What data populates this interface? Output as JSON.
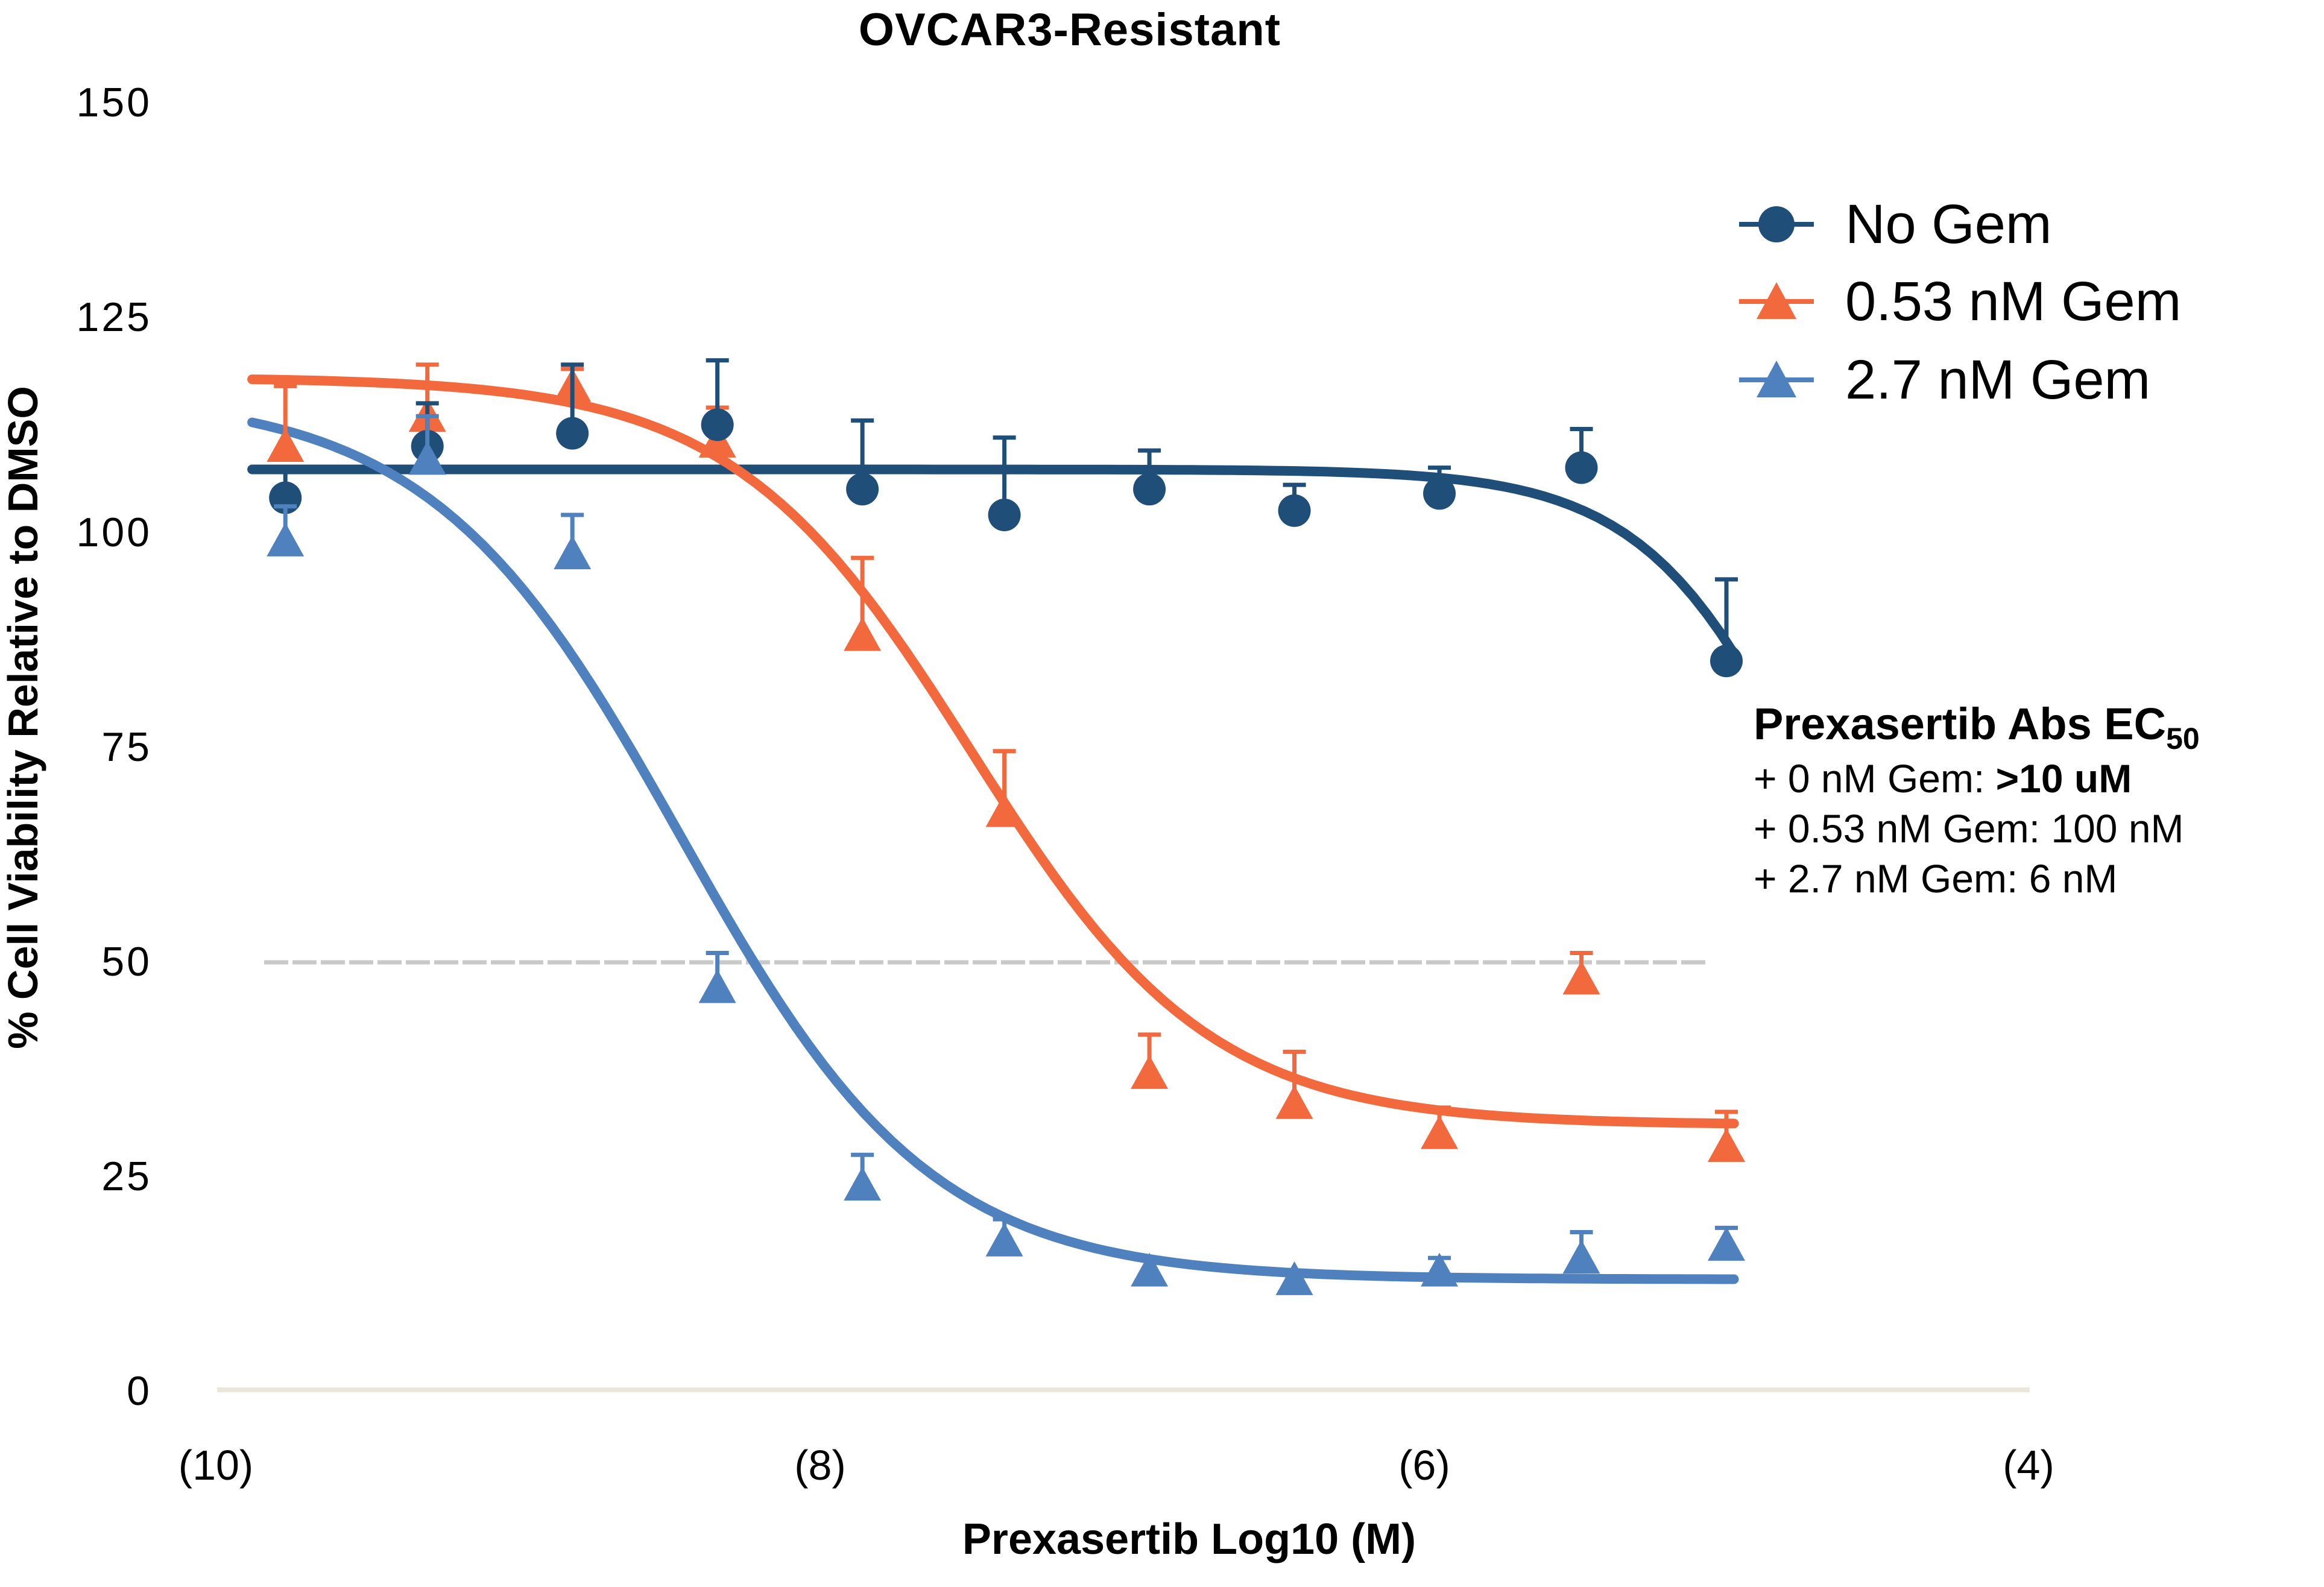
{
  "figure": {
    "title": "OVCAR3-Resistant"
  },
  "chart_data": {
    "type": "scatter",
    "title": "OVCAR3-Resistant",
    "xlabel": "Prexasertib Log10 (M)",
    "ylabel": "% Cell Viability Relative to DMSO",
    "x_ticks": [
      {
        "label": "(10)",
        "log": -10
      },
      {
        "label": "(8)",
        "log": -8
      },
      {
        "label": "(6)",
        "log": -6
      },
      {
        "label": "(4)",
        "log": -4
      }
    ],
    "y_ticks": [
      150,
      125,
      100,
      75,
      50,
      25,
      0
    ],
    "xlim": [
      -10.3,
      -4
    ],
    "ylim": [
      0,
      150
    ],
    "gridlines": {
      "zero_line": {
        "y": 0,
        "color": "#EAE7D9",
        "style": "solid",
        "x_from": -10.0,
        "x_to": -4.0
      },
      "fifty_line": {
        "y": 50,
        "color": "#C9C9C9",
        "style": "dashed",
        "x_from": -9.84,
        "x_to": -5.06
      }
    },
    "legend_position": "right",
    "series": [
      {
        "name": "No Gem",
        "color": "#1F4E79",
        "marker": "circle",
        "points": [
          {
            "x": -9.77,
            "y": 104.0,
            "err": 3.0
          },
          {
            "x": -9.3,
            "y": 110.0,
            "err": 5.0
          },
          {
            "x": -8.82,
            "y": 111.5,
            "err": 8.0
          },
          {
            "x": -8.34,
            "y": 112.5,
            "err": 7.5
          },
          {
            "x": -7.86,
            "y": 105.0,
            "err": 8.0
          },
          {
            "x": -7.39,
            "y": 102.0,
            "err": 9.0
          },
          {
            "x": -6.91,
            "y": 105.0,
            "err": 4.5
          },
          {
            "x": -6.43,
            "y": 102.5,
            "err": 3.0
          },
          {
            "x": -5.95,
            "y": 104.5,
            "err": 3.0
          },
          {
            "x": -5.48,
            "y": 107.5,
            "err": 4.5
          },
          {
            "x": -5.0,
            "y": 85.0,
            "err": 9.5
          }
        ],
        "fit": {
          "top": 107.3,
          "bottom": 20,
          "logec50": -4.65,
          "hill": 1.5
        },
        "ec50_label": ">10 uM"
      },
      {
        "name": "0.53 nM Gem",
        "color": "#F1693C",
        "marker": "triangle",
        "points": [
          {
            "x": -9.77,
            "y": 110.0,
            "err": 7.0
          },
          {
            "x": -9.3,
            "y": 113.5,
            "err": 6.0
          },
          {
            "x": -8.82,
            "y": 117.0,
            "err": 2.0
          },
          {
            "x": -8.34,
            "y": 110.5,
            "err": 4.0
          },
          {
            "x": -7.86,
            "y": 88.0,
            "err": 9.0
          },
          {
            "x": -7.39,
            "y": 67.5,
            "err": 7.0
          },
          {
            "x": -6.91,
            "y": 37.0,
            "err": 4.5
          },
          {
            "x": -6.43,
            "y": 33.5,
            "err": 6.0
          },
          {
            "x": -5.95,
            "y": 30.0,
            "err": 3.0
          },
          {
            "x": -5.48,
            "y": 48.0,
            "err": 3.0
          },
          {
            "x": -5.0,
            "y": 28.5,
            "err": 4.0
          }
        ],
        "fit": {
          "top": 118,
          "bottom": 31,
          "logec50": -7.5,
          "hill": 1.1
        },
        "ec50_label": "100 nM"
      },
      {
        "name": "2.7 nM Gem",
        "color": "#4E81BD",
        "marker": "triangle",
        "points": [
          {
            "x": -9.77,
            "y": 99.0,
            "err": 4.0
          },
          {
            "x": -9.3,
            "y": 108.5,
            "err": 5.0
          },
          {
            "x": -8.82,
            "y": 97.5,
            "err": 4.5
          },
          {
            "x": -8.34,
            "y": 47.0,
            "err": 4.0
          },
          {
            "x": -7.86,
            "y": 24.0,
            "err": 3.5
          },
          {
            "x": -7.39,
            "y": 17.5,
            "err": 2.5
          },
          {
            "x": -6.91,
            "y": 14.0,
            "err": 1.5
          },
          {
            "x": -6.43,
            "y": 13.0,
            "err": 1.0
          },
          {
            "x": -5.95,
            "y": 14.0,
            "err": 1.5
          },
          {
            "x": -5.48,
            "y": 15.5,
            "err": 3.0
          },
          {
            "x": -5.0,
            "y": 17.0,
            "err": 2.0
          }
        ],
        "fit": {
          "top": 116,
          "bottom": 13,
          "logec50": -8.46,
          "hill": 1.05
        },
        "ec50_label": "6 nM"
      }
    ],
    "ec50": {
      "heading": "Prexasertib Abs EC",
      "heading_sub": "50",
      "rows": [
        {
          "label": "+ 0 nM Gem: ",
          "value": ">10 uM",
          "bold": true
        },
        {
          "label": "+ 0.53 nM Gem: ",
          "value": "100 nM",
          "bold": false
        },
        {
          "label": "+ 2.7 nM Gem: ",
          "value": "6 nM",
          "bold": false
        }
      ]
    }
  }
}
